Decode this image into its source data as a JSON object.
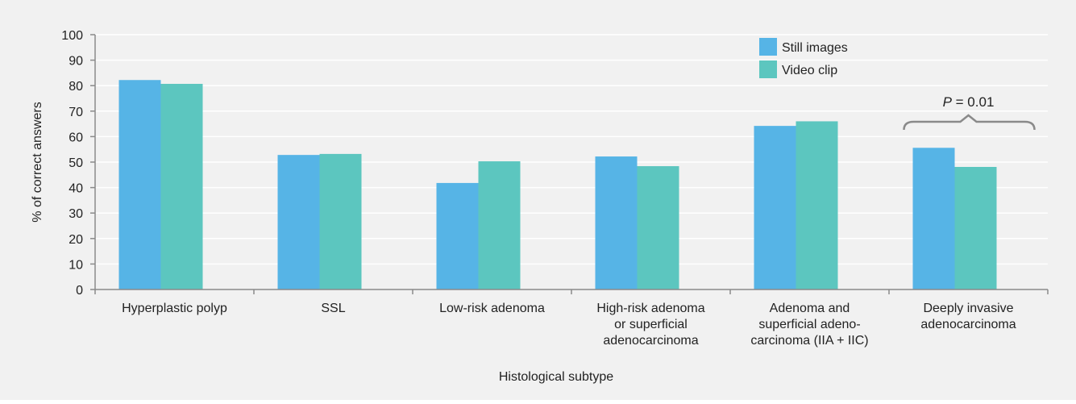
{
  "chart_data": {
    "type": "bar",
    "xlabel": "Histological subtype",
    "ylabel": "% of correct answers",
    "ylim": [
      0,
      100
    ],
    "yticks": [
      0,
      10,
      20,
      30,
      40,
      50,
      60,
      70,
      80,
      90,
      100
    ],
    "grid": true,
    "legend_position": "top-right",
    "categories": [
      [
        "Hyperplastic polyp"
      ],
      [
        "SSL"
      ],
      [
        "Low-risk adenoma"
      ],
      [
        "High-risk adenoma",
        "or superficial",
        "adenocarcinoma"
      ],
      [
        "Adenoma and",
        "superficial adeno-",
        "carcinoma (IIA + IIC)"
      ],
      [
        "Deeply invasive",
        "adenocarcinoma"
      ]
    ],
    "series": [
      {
        "name": "Still images",
        "color": "#56b4e6",
        "values": [
          82.2,
          52.8,
          41.8,
          52.2,
          64.2,
          55.6
        ]
      },
      {
        "name": "Video clip",
        "color": "#5cc6bf",
        "values": [
          80.7,
          53.2,
          50.3,
          48.4,
          66.0,
          48.1
        ]
      }
    ],
    "annotations": [
      {
        "category_index": 5,
        "italic": "P",
        "text": " = 0.01"
      }
    ],
    "colors": {
      "background": "#f1f1f1",
      "plot_background": "#f1f1f1",
      "grid": "#ffffff",
      "axis": "#8a8a8a"
    }
  }
}
